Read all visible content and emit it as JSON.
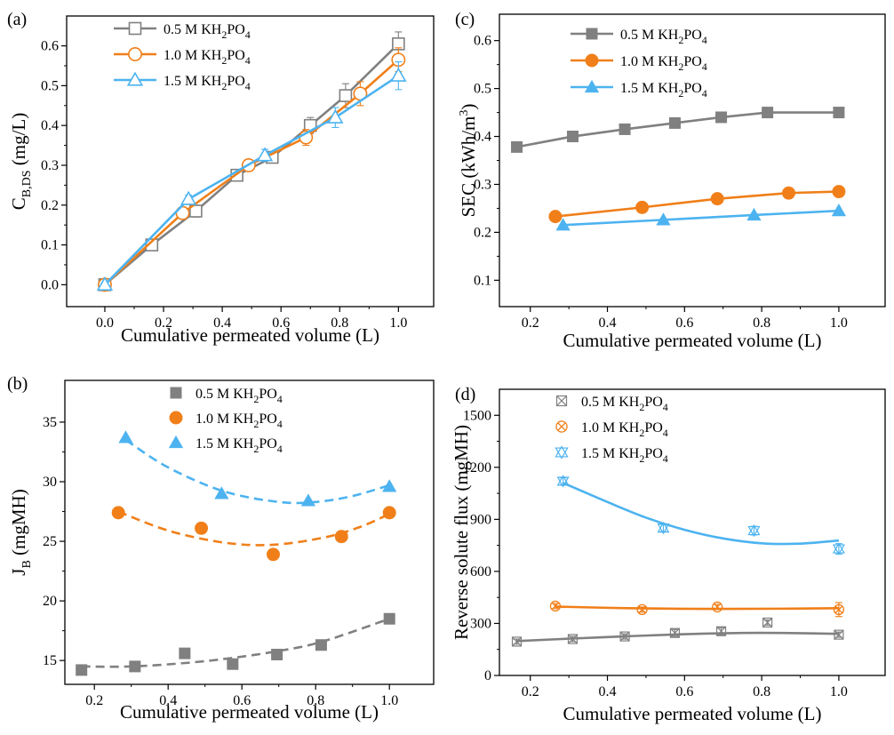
{
  "chart_data": [
    {
      "id": "a",
      "panel_label": "(a)",
      "type": "line",
      "xlabel": "Cumulative permeated volume (L)",
      "ylabel_main": "C",
      "ylabel_sub": "B,DS",
      "ylabel_unit": " (mg/L)",
      "xlim": [
        -0.13,
        1.12
      ],
      "ylim": [
        -0.055,
        0.675
      ],
      "xticks": [
        0.0,
        0.2,
        0.4,
        0.6,
        0.8,
        1.0
      ],
      "xtick_labels": [
        "0.0",
        "0.2",
        "0.4",
        "0.6",
        "0.8",
        "1.0"
      ],
      "yticks": [
        0.0,
        0.1,
        0.2,
        0.3,
        0.4,
        0.5,
        0.6
      ],
      "ytick_labels": [
        "0.0",
        "0.1",
        "0.2",
        "0.3",
        "0.4",
        "0.5",
        "0.6"
      ],
      "legend": "top-left",
      "series": [
        {
          "name": "0.5 M KH2PO4",
          "label_pre": "0.5 M KH",
          "label_mid": "PO",
          "color": "#808080",
          "marker": "square-open",
          "x": [
            0.0,
            0.16,
            0.31,
            0.45,
            0.57,
            0.7,
            0.82,
            1.0
          ],
          "y": [
            0.0,
            0.1,
            0.185,
            0.275,
            0.32,
            0.4,
            0.475,
            0.605
          ],
          "err": [
            0.005,
            0.01,
            0.015,
            0.01,
            0.01,
            0.02,
            0.03,
            0.03
          ]
        },
        {
          "name": "1.0 M KH2PO4",
          "label_pre": "1.0 M KH",
          "label_mid": "PO",
          "color": "#F07F19",
          "marker": "circle-open",
          "x": [
            0.0,
            0.265,
            0.49,
            0.685,
            0.87,
            1.0
          ],
          "y": [
            0.0,
            0.18,
            0.3,
            0.37,
            0.48,
            0.565
          ],
          "err": [
            0.005,
            0.015,
            0.01,
            0.02,
            0.03,
            0.03
          ]
        },
        {
          "name": "1.5 M KH2PO4",
          "label_pre": "1.5 M KH",
          "label_mid": "PO",
          "color": "#4DB3F0",
          "marker": "triangle-open",
          "x": [
            0.0,
            0.285,
            0.545,
            0.785,
            1.0
          ],
          "y": [
            0.0,
            0.215,
            0.325,
            0.42,
            0.525
          ],
          "err": [
            0.005,
            0.01,
            0.015,
            0.025,
            0.035
          ]
        }
      ]
    },
    {
      "id": "b",
      "panel_label": "(b)",
      "type": "scatter",
      "xlabel": "Cumulative permeated volume (L)",
      "ylabel_main": "J",
      "ylabel_sub": "B",
      "ylabel_unit": " (mgMH)",
      "xlim": [
        0.12,
        1.12
      ],
      "ylim": [
        13.0,
        38.5
      ],
      "xticks": [
        0.2,
        0.4,
        0.6,
        0.8,
        1.0
      ],
      "xtick_labels": [
        "0.2",
        "0.4",
        "0.6",
        "0.8",
        "1.0"
      ],
      "yticks": [
        15,
        20,
        25,
        30,
        35
      ],
      "ytick_labels": [
        "15",
        "20",
        "25",
        "30",
        "35"
      ],
      "legend": "top-center",
      "series": [
        {
          "name": "0.5 M KH2PO4",
          "label_pre": "0.5 M KH",
          "label_mid": "PO",
          "color": "#808080",
          "marker": "square",
          "x": [
            0.165,
            0.31,
            0.445,
            0.575,
            0.695,
            0.815,
            1.0
          ],
          "y": [
            14.2,
            14.5,
            15.6,
            14.7,
            15.5,
            16.3,
            18.5
          ],
          "fit": {
            "x": [
              0.165,
              0.3,
              0.45,
              0.57,
              0.7,
              0.82,
              1.0
            ],
            "y": [
              14.5,
              14.5,
              14.8,
              15.2,
              15.8,
              16.6,
              18.5
            ]
          }
        },
        {
          "name": "1.0 M KH2PO4",
          "label_pre": "1.0 M KH",
          "label_mid": "PO",
          "color": "#F07F19",
          "marker": "circle",
          "x": [
            0.265,
            0.49,
            0.685,
            0.87,
            1.0
          ],
          "y": [
            27.4,
            26.1,
            23.9,
            25.4,
            27.4
          ],
          "fit": {
            "x": [
              0.265,
              0.4,
              0.55,
              0.68,
              0.82,
              0.92,
              1.0
            ],
            "y": [
              27.5,
              25.9,
              24.9,
              24.7,
              25.3,
              26.2,
              27.3
            ]
          }
        },
        {
          "name": "1.5 M KH2PO4",
          "label_pre": "1.5 M KH",
          "label_mid": "PO",
          "color": "#4DB3F0",
          "marker": "triangle",
          "x": [
            0.285,
            0.545,
            0.78,
            1.0
          ],
          "y": [
            33.7,
            29.0,
            28.4,
            29.6
          ],
          "fit": {
            "x": [
              0.285,
              0.4,
              0.55,
              0.7,
              0.8,
              0.9,
              1.0
            ],
            "y": [
              33.5,
              31.2,
              29.2,
              28.3,
              28.3,
              28.8,
              29.7
            ]
          }
        }
      ]
    },
    {
      "id": "c",
      "panel_label": "(c)",
      "type": "line",
      "xlabel": "Cumulative permeated volume (L)",
      "ylabel_main": "SEC (kWh/m",
      "ylabel_sup": "3",
      "ylabel_unit": ")",
      "xlim": [
        0.12,
        1.12
      ],
      "ylim": [
        0.045,
        0.655
      ],
      "xticks": [
        0.2,
        0.4,
        0.6,
        0.8,
        1.0
      ],
      "xtick_labels": [
        "0.2",
        "0.4",
        "0.6",
        "0.8",
        "1.0"
      ],
      "yticks": [
        0.1,
        0.2,
        0.3,
        0.4,
        0.5,
        0.6
      ],
      "ytick_labels": [
        "0.1",
        "0.2",
        "0.3",
        "0.4",
        "0.5",
        "0.6"
      ],
      "legend": "top-left",
      "series": [
        {
          "name": "0.5 M KH2PO4",
          "label_pre": "0.5 M KH",
          "label_mid": "PO",
          "color": "#808080",
          "marker": "square",
          "x": [
            0.165,
            0.31,
            0.445,
            0.575,
            0.695,
            0.815,
            1.0
          ],
          "y": [
            0.378,
            0.4,
            0.415,
            0.428,
            0.44,
            0.45,
            0.45
          ]
        },
        {
          "name": "1.0 M KH2PO4",
          "label_pre": "1.0 M KH",
          "label_mid": "PO",
          "color": "#F07F19",
          "marker": "circle",
          "x": [
            0.265,
            0.49,
            0.685,
            0.87,
            1.0
          ],
          "y": [
            0.233,
            0.252,
            0.27,
            0.282,
            0.285
          ]
        },
        {
          "name": "1.5 M KH2PO4",
          "label_pre": "1.5 M KH",
          "label_mid": "PO",
          "color": "#4DB3F0",
          "marker": "triangle",
          "x": [
            0.285,
            0.545,
            0.78,
            1.0
          ],
          "y": [
            0.215,
            0.226,
            0.236,
            0.245
          ]
        }
      ]
    },
    {
      "id": "d",
      "panel_label": "(d)",
      "type": "scatter",
      "xlabel": "Cumulative permeated volume (L)",
      "ylabel_main": "Reverse solute flux (mgMH)",
      "xlim": [
        0.12,
        1.12
      ],
      "ylim": [
        0,
        1650
      ],
      "xticks": [
        0.2,
        0.4,
        0.6,
        0.8,
        1.0
      ],
      "xtick_labels": [
        "0.2",
        "0.4",
        "0.6",
        "0.8",
        "1.0"
      ],
      "yticks": [
        0,
        300,
        600,
        900,
        1200,
        1500
      ],
      "ytick_labels": [
        "0",
        "300",
        "600",
        "900",
        "1200",
        "1500"
      ],
      "legend": "top-left",
      "series": [
        {
          "name": "0.5 M KH2PO4",
          "label_pre": "0.5 M KH",
          "label_mid": "PO",
          "color": "#808080",
          "marker": "boxx",
          "x": [
            0.165,
            0.31,
            0.445,
            0.575,
            0.695,
            0.815,
            1.0
          ],
          "y": [
            195,
            210,
            225,
            245,
            255,
            305,
            235
          ],
          "err": [
            15,
            15,
            15,
            20,
            20,
            15,
            15
          ],
          "fit": {
            "x": [
              0.165,
              0.3,
              0.45,
              0.6,
              0.75,
              0.85,
              1.0
            ],
            "y": [
              198,
              212,
              226,
              238,
              245,
              245,
              240
            ]
          }
        },
        {
          "name": "1.0 M KH2PO4",
          "label_pre": "1.0 M KH",
          "label_mid": "PO",
          "color": "#F07F19",
          "marker": "circlex",
          "x": [
            0.265,
            0.49,
            0.685,
            1.0
          ],
          "y": [
            400,
            380,
            395,
            380
          ],
          "err": [
            15,
            15,
            15,
            40
          ],
          "fit": {
            "x": [
              0.265,
              0.45,
              0.65,
              0.85,
              1.0
            ],
            "y": [
              397,
              388,
              384,
              385,
              388
            ]
          }
        },
        {
          "name": "1.5 M KH2PO4",
          "label_pre": "1.5 M KH",
          "label_mid": "PO",
          "color": "#4DB3F0",
          "marker": "triangle-star",
          "x": [
            0.285,
            0.545,
            0.78,
            1.0
          ],
          "y": [
            1120,
            850,
            835,
            730
          ],
          "err": [
            20,
            20,
            25,
            30
          ],
          "fit": {
            "x": [
              0.285,
              0.4,
              0.5,
              0.6,
              0.7,
              0.8,
              0.9,
              1.0
            ],
            "y": [
              1110,
              1000,
              910,
              840,
              790,
              762,
              760,
              778
            ]
          }
        }
      ]
    }
  ]
}
